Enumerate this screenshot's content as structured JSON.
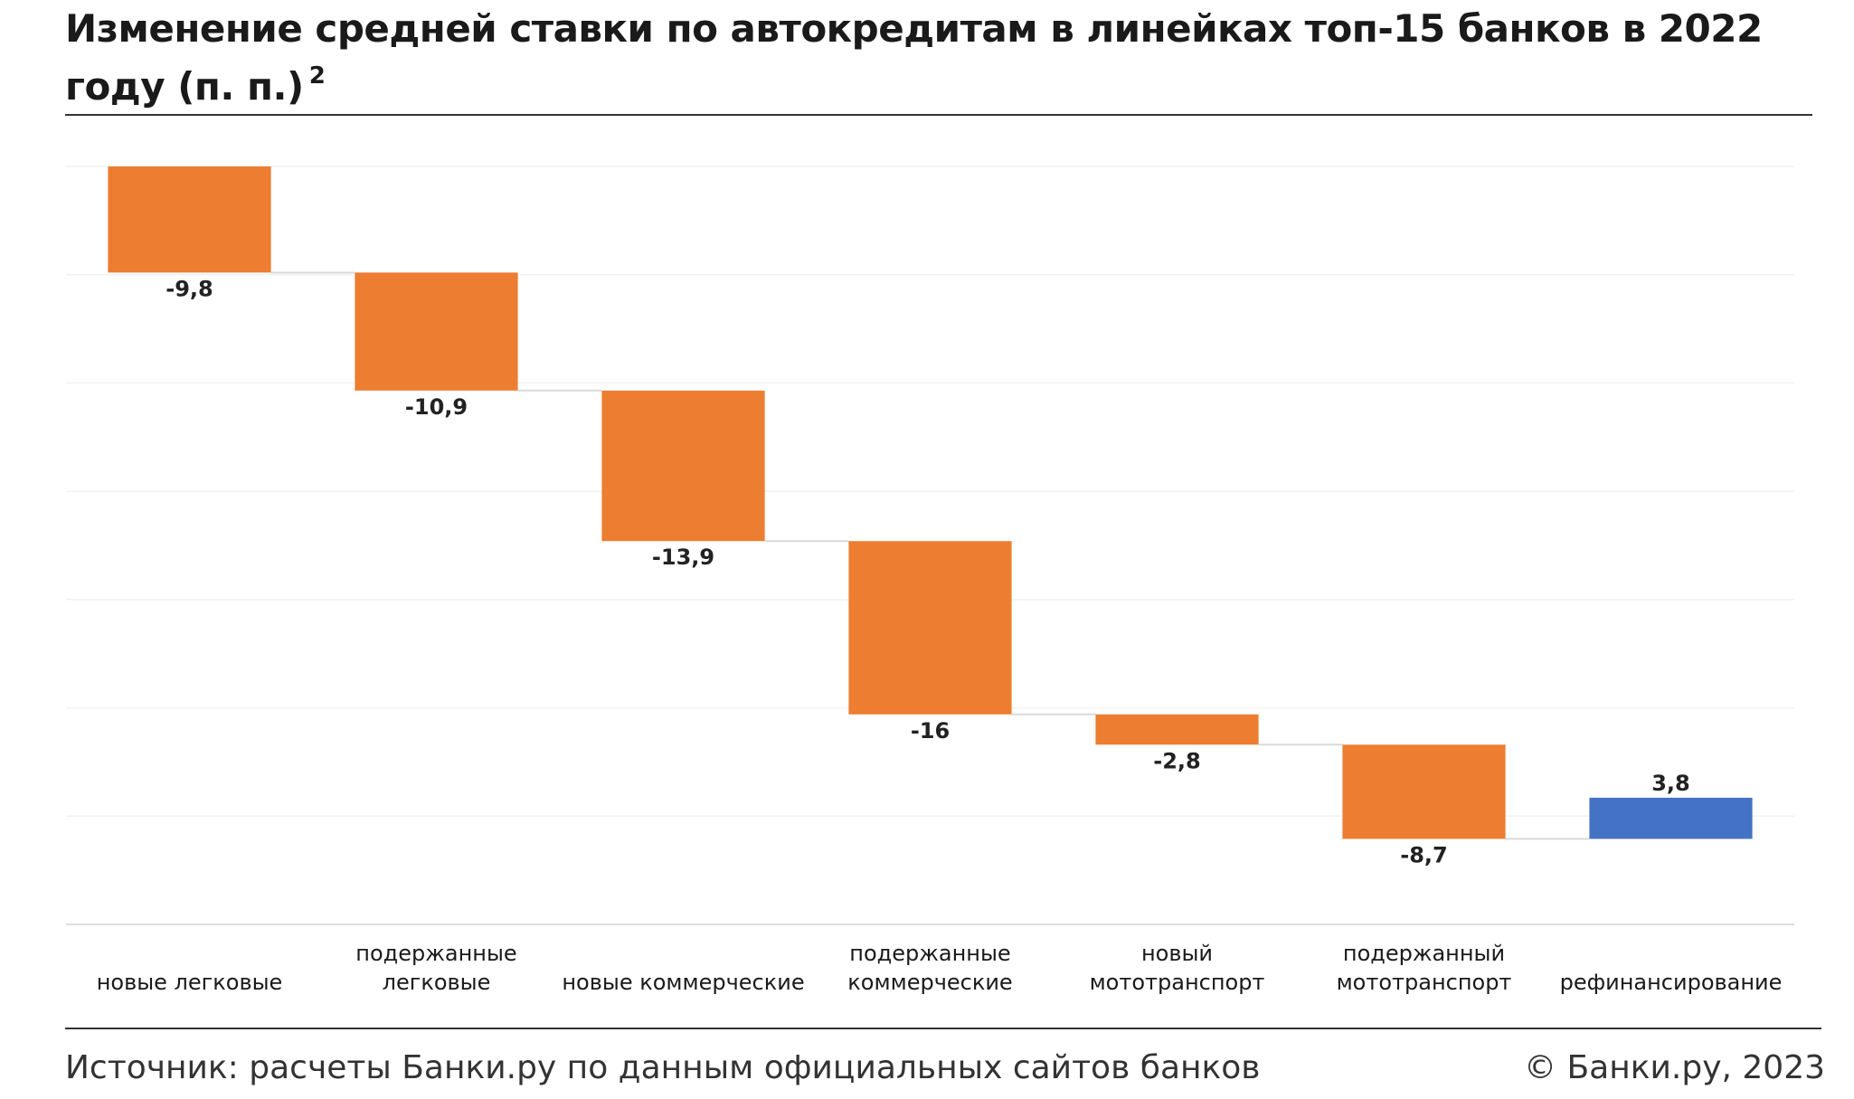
{
  "chart_data": {
    "type": "waterfall",
    "title": "Изменение средней ставки по автокредитам в линейках топ-15 банков в 2022 году (п. п.)",
    "title_note": "2",
    "categories": [
      "новые легковые",
      "подержанные легковые",
      "новые коммерческие",
      "подержанные коммерческие",
      "новый мототранспорт",
      "подержанный мототранспорт",
      "рефинансирование"
    ],
    "values": [
      -9.8,
      -10.9,
      -13.9,
      -16,
      -2.8,
      -8.7,
      3.8
    ],
    "value_labels": [
      "-9,8",
      "-10,9",
      "-13,9",
      "-16",
      "-2,8",
      "-8,7",
      "3,8"
    ],
    "color_decrease": "#ed7d31",
    "color_increase": "#4472c4",
    "ylim": [
      -70,
      0
    ],
    "yticks": [
      0,
      -10,
      -20,
      -30,
      -40,
      -50,
      -60,
      -70
    ],
    "grid": true,
    "source": "Источник: расчеты Банки.ру по данным официальных сайтов банков",
    "copyright": "© Банки.ру, 2023"
  }
}
